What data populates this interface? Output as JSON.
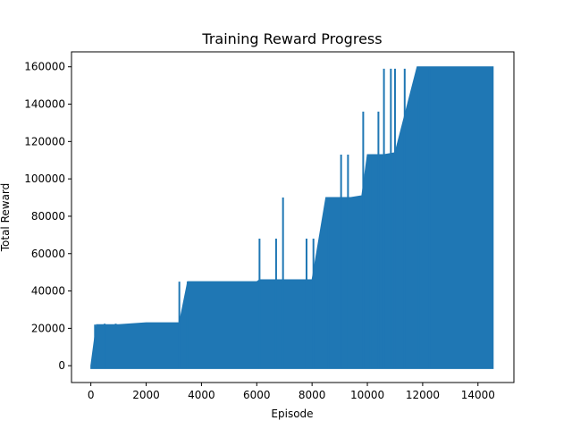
{
  "chart_data": {
    "type": "line",
    "title": "Training Reward Progress",
    "xlabel": "Episode",
    "ylabel": "Total Reward",
    "xlim": [
      -700,
      15300
    ],
    "ylim": [
      -9000,
      168000
    ],
    "xticks": [
      0,
      2000,
      4000,
      6000,
      8000,
      10000,
      12000,
      14000
    ],
    "yticks": [
      0,
      20000,
      40000,
      60000,
      80000,
      100000,
      120000,
      140000,
      160000
    ],
    "grid": false,
    "series": [
      {
        "color": "#1f77b4",
        "baseline": -1500,
        "x": [
          0,
          200,
          400,
          700,
          1000,
          2000,
          3200,
          3500,
          4000,
          5000,
          6000,
          6100,
          6700,
          7000,
          7800,
          8000,
          8500,
          9000,
          9400,
          9800,
          10000,
          10300,
          10600,
          11000,
          11800,
          12500,
          13000,
          14000,
          14550
        ],
        "y_upper": [
          0,
          22000,
          22000,
          22000,
          22000,
          23000,
          23000,
          45000,
          45000,
          45000,
          45000,
          46000,
          46000,
          46000,
          46000,
          46000,
          90000,
          90000,
          90000,
          91000,
          113000,
          113000,
          113000,
          114000,
          160000,
          160000,
          160000,
          160000,
          160000
        ],
        "spikes": [
          {
            "x": 150,
            "y": 22000
          },
          {
            "x": 500,
            "y": 22500
          },
          {
            "x": 900,
            "y": 22500
          },
          {
            "x": 3200,
            "y": 45000
          },
          {
            "x": 3500,
            "y": 45000
          },
          {
            "x": 6100,
            "y": 68000
          },
          {
            "x": 6700,
            "y": 68000
          },
          {
            "x": 6950,
            "y": 90000
          },
          {
            "x": 7800,
            "y": 68000
          },
          {
            "x": 8050,
            "y": 68000
          },
          {
            "x": 8600,
            "y": 90000
          },
          {
            "x": 9050,
            "y": 113000
          },
          {
            "x": 9300,
            "y": 113000
          },
          {
            "x": 9850,
            "y": 136000
          },
          {
            "x": 10100,
            "y": 113000
          },
          {
            "x": 10400,
            "y": 136000
          },
          {
            "x": 10600,
            "y": 159000
          },
          {
            "x": 10850,
            "y": 159000
          },
          {
            "x": 11000,
            "y": 159000
          },
          {
            "x": 11350,
            "y": 159000
          },
          {
            "x": 11550,
            "y": 136000
          },
          {
            "x": 11850,
            "y": 159000
          },
          {
            "x": 12250,
            "y": 159000
          }
        ]
      }
    ]
  }
}
